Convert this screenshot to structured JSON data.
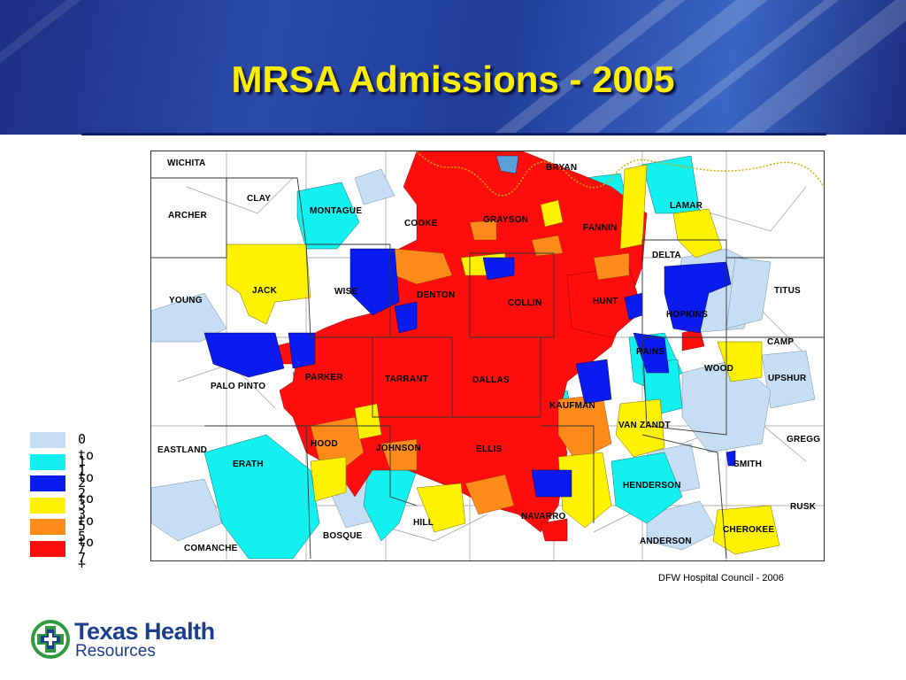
{
  "title": "MRSA Admissions - 2005",
  "credit": "DFW Hospital Council - 2006",
  "logo": {
    "line1": "Texas Health",
    "line2": "Resources",
    "icon": "cross-emblem-icon"
  },
  "colors": {
    "header_dark": "#1c2f86",
    "title": "#ffee00",
    "logo_green": "#2f9a3e",
    "logo_blue": "#1b3f8c"
  },
  "legend": [
    {
      "label": "0 to 1",
      "color": "#c6def3"
    },
    {
      "label": "1 to 2",
      "color": "#12f0f0"
    },
    {
      "label": "2 to 3",
      "color": "#0a1bf0"
    },
    {
      "label": "3 to 5",
      "color": "#fff200"
    },
    {
      "label": "5 to 7",
      "color": "#ff8c1a"
    },
    {
      "label": "7 +",
      "color": "#ff0c0c"
    }
  ],
  "counties": [
    "WICHITA",
    "CLAY",
    "MONTAGUE",
    "COOKE",
    "GRAYSON",
    "BRYAN",
    "FANNIN",
    "LAMAR",
    "ARCHER",
    "JACK",
    "WISE",
    "DENTON",
    "COLLIN",
    "HUNT",
    "DELTA",
    "HOPKINS",
    "TITUS",
    "YOUNG",
    "CAMP",
    "RAINS",
    "WOOD",
    "PALO PINTO",
    "PARKER",
    "TARRANT",
    "DALLAS",
    "UPSHUR",
    "KAUFMAN",
    "VAN ZANDT",
    "GREGG",
    "EASTLAND",
    "HOOD",
    "JOHNSON",
    "ELLIS",
    "SMITH",
    "ERATH",
    "HENDERSON",
    "RUSK",
    "HILL",
    "NAVARRO",
    "BOSQUE",
    "CHEROKEE",
    "ANDERSON",
    "COMANCHE"
  ]
}
